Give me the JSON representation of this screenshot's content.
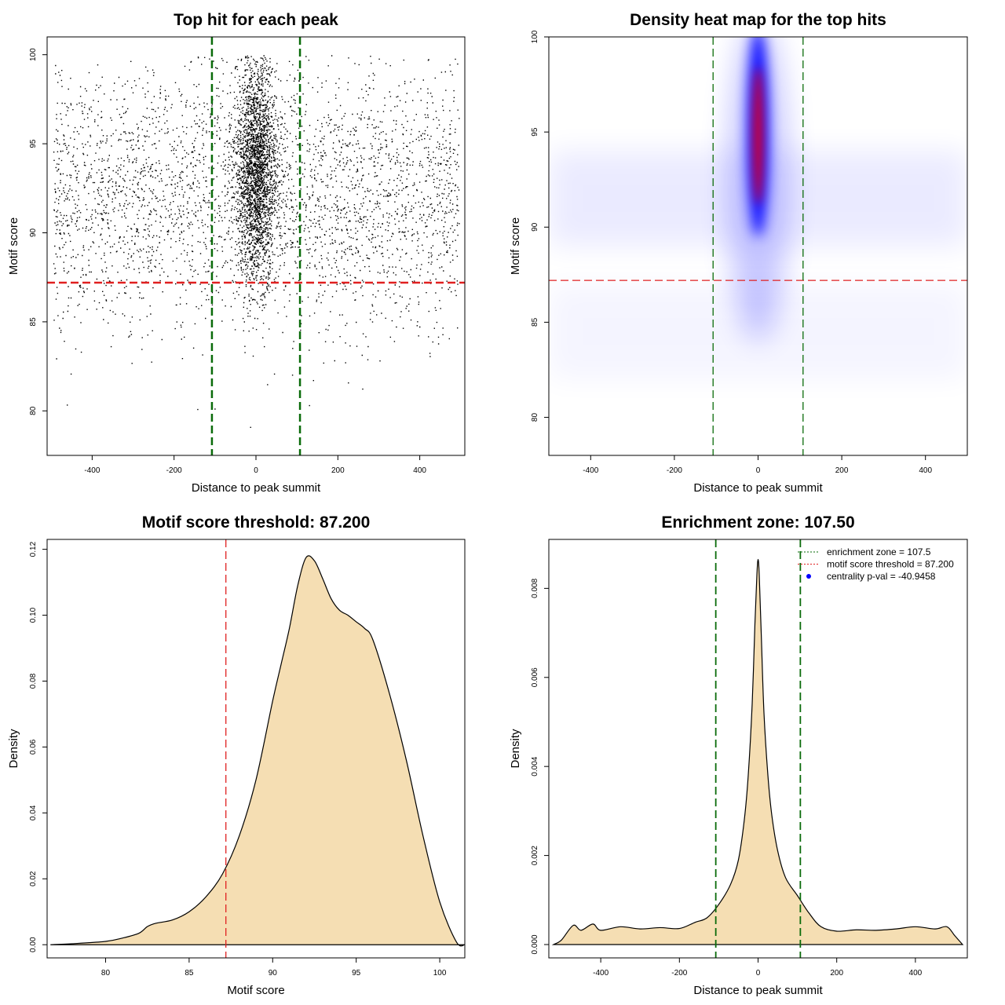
{
  "chart_data": [
    {
      "type": "scatter",
      "title": "Top hit for each peak",
      "xlabel": "Distance to peak summit",
      "ylabel": "Motif score",
      "xlim": [
        -510,
        510
      ],
      "ylim": [
        77.5,
        101
      ],
      "xticks": [
        -400,
        -200,
        0,
        200,
        400
      ],
      "yticks": [
        80,
        85,
        90,
        95,
        100
      ],
      "hlines": [
        {
          "y": 87.2,
          "color": "#e02020",
          "style": "dashed"
        }
      ],
      "vlines": [
        {
          "x": -107.5,
          "color": "#0a6b0a",
          "style": "dashed"
        },
        {
          "x": 107.5,
          "color": "#0a6b0a",
          "style": "dashed"
        }
      ],
      "points_summary": {
        "n_approx": 6000,
        "x_range": [
          -495,
          495
        ],
        "y_range": [
          78,
          100
        ],
        "central_cluster": {
          "x_center": 0,
          "x_spread": 25,
          "y_center": 93.5,
          "y_spread": 3
        },
        "background": {
          "y_center": 92,
          "y_spread": 3.5
        },
        "point_color": "#000000"
      }
    },
    {
      "type": "heatmap",
      "title": "Density heat map for the top hits",
      "xlabel": "Distance to peak summit",
      "ylabel": "Motif score",
      "xlim": [
        -500,
        500
      ],
      "ylim": [
        78,
        100
      ],
      "xticks": [
        -400,
        -200,
        0,
        200,
        400
      ],
      "yticks": [
        80,
        85,
        90,
        95,
        100
      ],
      "hlines": [
        {
          "y": 87.2,
          "color": "#e02020",
          "style": "dashed"
        }
      ],
      "vlines": [
        {
          "x": -107.5,
          "color": "#0a6b0a",
          "style": "dashed"
        },
        {
          "x": 107.5,
          "color": "#0a6b0a",
          "style": "dashed"
        }
      ],
      "hotspot": {
        "x": 0,
        "y": 95,
        "x_spread": 20,
        "y_spread": 2.5
      },
      "colors": [
        "#ffffff",
        "#0000ff",
        "#ff0000"
      ]
    },
    {
      "type": "area",
      "title": "Motif score threshold: 87.200",
      "xlabel": "Motif score",
      "ylabel": "Density",
      "xlim": [
        76.5,
        101.5
      ],
      "ylim": [
        -0.004,
        0.123
      ],
      "xticks": [
        80,
        85,
        90,
        95,
        100
      ],
      "yticks": [
        0.0,
        0.02,
        0.04,
        0.06,
        0.08,
        0.1,
        0.12
      ],
      "ytick_labels": [
        "0.00",
        "0.02",
        "0.04",
        "0.06",
        "0.08",
        "0.10",
        "0.12"
      ],
      "vlines": [
        {
          "x": 87.2,
          "color": "#e02020",
          "style": "dashed"
        }
      ],
      "fill": "#f5deb3",
      "x": [
        76.7,
        78,
        80,
        81,
        82,
        82.5,
        83,
        84,
        85,
        86,
        87,
        88,
        89,
        90,
        90.5,
        91,
        91.5,
        92,
        92.5,
        93,
        93.5,
        94,
        94.5,
        95,
        95.5,
        96,
        97,
        98,
        99,
        100,
        101,
        101.5
      ],
      "y": [
        0.0,
        0.0003,
        0.001,
        0.002,
        0.0035,
        0.0055,
        0.0065,
        0.0075,
        0.01,
        0.0145,
        0.0215,
        0.033,
        0.05,
        0.074,
        0.085,
        0.096,
        0.109,
        0.1175,
        0.1165,
        0.111,
        0.105,
        0.1015,
        0.1,
        0.098,
        0.096,
        0.0925,
        0.076,
        0.056,
        0.033,
        0.013,
        0.0008,
        0.0
      ]
    },
    {
      "type": "area",
      "title": "Enrichment zone: 107.50",
      "xlabel": "Distance to peak summit",
      "ylabel": "Density",
      "xlim": [
        -532,
        532
      ],
      "ylim": [
        -0.0003,
        0.0091
      ],
      "xticks": [
        -400,
        -200,
        0,
        200,
        400
      ],
      "yticks": [
        0.0,
        0.002,
        0.004,
        0.006,
        0.008
      ],
      "ytick_labels": [
        "0.000",
        "0.002",
        "0.004",
        "0.006",
        "0.008"
      ],
      "vlines": [
        {
          "x": -107.5,
          "color": "#0a6b0a",
          "style": "dashed"
        },
        {
          "x": 107.5,
          "color": "#0a6b0a",
          "style": "dashed"
        }
      ],
      "fill": "#f5deb3",
      "x": [
        -520,
        -500,
        -470,
        -450,
        -420,
        -400,
        -350,
        -300,
        -250,
        -200,
        -160,
        -130,
        -100,
        -70,
        -50,
        -35,
        -25,
        -15,
        -8,
        -3,
        0,
        3,
        8,
        15,
        25,
        35,
        50,
        70,
        100,
        130,
        160,
        200,
        250,
        300,
        350,
        400,
        450,
        480,
        500,
        520
      ],
      "y": [
        0.0,
        0.0001,
        0.00043,
        0.00032,
        0.00046,
        0.00032,
        0.0004,
        0.00035,
        0.00038,
        0.00036,
        0.0005,
        0.0006,
        0.0009,
        0.00135,
        0.0019,
        0.0028,
        0.0038,
        0.0054,
        0.0072,
        0.0083,
        0.00865,
        0.0083,
        0.007,
        0.0052,
        0.0038,
        0.0029,
        0.0021,
        0.0015,
        0.0011,
        0.0007,
        0.0004,
        0.0003,
        0.00033,
        0.00032,
        0.00035,
        0.0004,
        0.00035,
        0.0004,
        0.0002,
        0.0
      ],
      "legend": {
        "position": "top-right",
        "entries": [
          {
            "label": "enrichment zone = 107.5",
            "color": "#0a6b0a",
            "style": "dotted"
          },
          {
            "label": "motif score threshold = 87.200",
            "color": "#e02020",
            "style": "dotted"
          },
          {
            "label": "centrality p-val = -40.9458",
            "color": "#0000ff",
            "style": "point"
          }
        ]
      }
    }
  ]
}
